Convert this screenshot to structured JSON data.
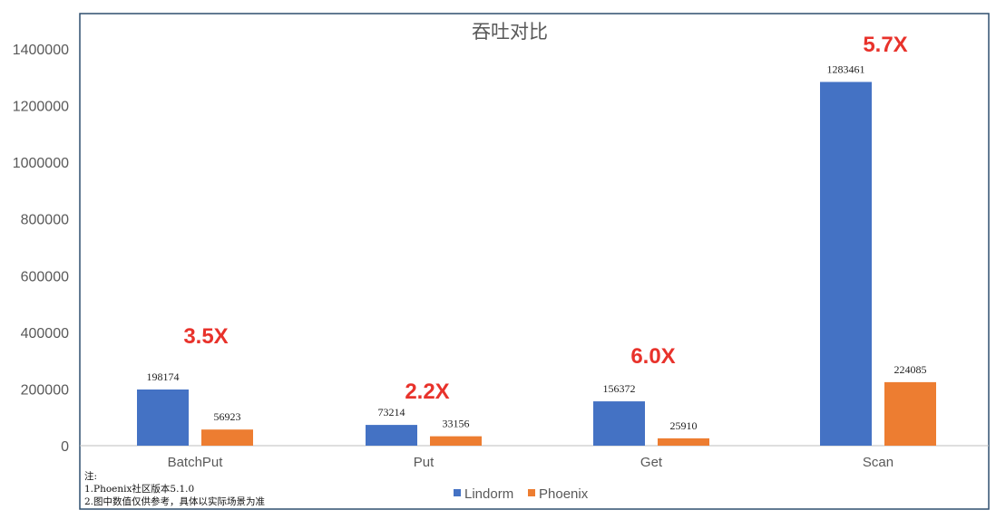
{
  "chart_data": {
    "type": "bar",
    "title": "吞吐对比",
    "categories": [
      "BatchPut",
      "Put",
      "Get",
      "Scan"
    ],
    "series": [
      {
        "name": "Lindorm",
        "values": [
          198174,
          73214,
          156372,
          1283461
        ],
        "color": "#4472C4"
      },
      {
        "name": "Phoenix",
        "values": [
          56923,
          33156,
          25910,
          224085
        ],
        "color": "#ED7D31"
      }
    ],
    "ratios": [
      "3.5X",
      "2.2X",
      "6.0X",
      "5.7X"
    ],
    "ratio_color": "#E8322B",
    "ylim": [
      0,
      1400000
    ],
    "yticks": [
      0,
      200000,
      400000,
      600000,
      800000,
      1000000,
      1200000,
      1400000
    ],
    "xlabel": "",
    "ylabel": "",
    "grid": false,
    "legend_position": "bottom"
  },
  "notes": [
    "注:",
    "1.Phoenix社区版本5.1.0",
    "2.图中数值仅供参考，具体以实际场景为准"
  ]
}
